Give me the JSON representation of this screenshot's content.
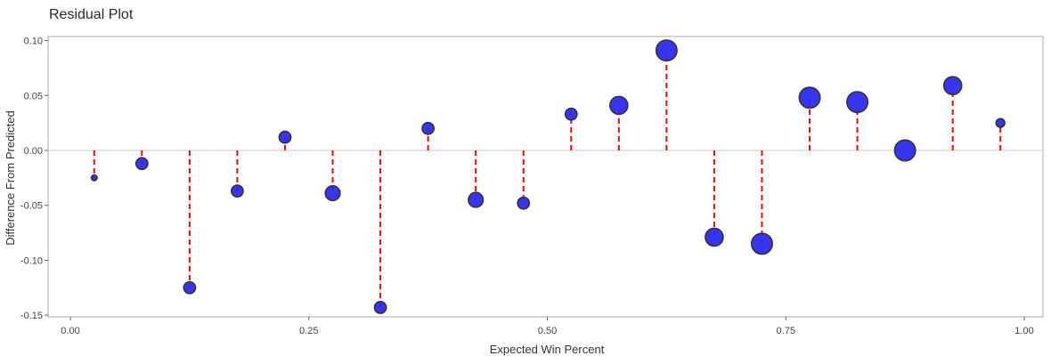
{
  "chart_data": {
    "type": "scatter",
    "title": "Residual Plot",
    "xlabel": "Expected Win Percent",
    "ylabel": "Difference From Predicted",
    "xlim": [
      -0.025,
      1.0
    ],
    "ylim": [
      -0.155,
      0.104
    ],
    "xticks": [
      0.0,
      0.25,
      0.5,
      0.75,
      1.0
    ],
    "xtick_labels": [
      "0.00",
      "0.25",
      "0.50",
      "0.75",
      "1.00"
    ],
    "yticks": [
      -0.15,
      -0.1,
      -0.05,
      0.0,
      0.05,
      0.1
    ],
    "ytick_labels": [
      "-0.15",
      "-0.10",
      "-0.05",
      "0.00",
      "0.05",
      "0.10"
    ],
    "grid": false,
    "reference_line": 0.0,
    "colors": {
      "point_fill": "#2b2bf0",
      "point_stroke": "#333333",
      "residual_line": "#ff0000",
      "zero_line": "#c8c8c8",
      "frame": "#aaaaaa"
    },
    "points": [
      {
        "x": 0.025,
        "y": -0.025,
        "size": 1
      },
      {
        "x": 0.075,
        "y": -0.012,
        "size": 3
      },
      {
        "x": 0.125,
        "y": -0.125,
        "size": 3
      },
      {
        "x": 0.175,
        "y": -0.037,
        "size": 3
      },
      {
        "x": 0.225,
        "y": 0.012,
        "size": 3
      },
      {
        "x": 0.275,
        "y": -0.039,
        "size": 4
      },
      {
        "x": 0.325,
        "y": -0.143,
        "size": 3
      },
      {
        "x": 0.375,
        "y": 0.02,
        "size": 3
      },
      {
        "x": 0.425,
        "y": -0.045,
        "size": 4
      },
      {
        "x": 0.475,
        "y": -0.048,
        "size": 3
      },
      {
        "x": 0.525,
        "y": 0.033,
        "size": 3
      },
      {
        "x": 0.575,
        "y": 0.041,
        "size": 5
      },
      {
        "x": 0.625,
        "y": 0.091,
        "size": 6
      },
      {
        "x": 0.675,
        "y": -0.079,
        "size": 5
      },
      {
        "x": 0.725,
        "y": -0.085,
        "size": 6
      },
      {
        "x": 0.775,
        "y": 0.048,
        "size": 6
      },
      {
        "x": 0.825,
        "y": 0.044,
        "size": 6
      },
      {
        "x": 0.875,
        "y": 0.0,
        "size": 6
      },
      {
        "x": 0.925,
        "y": 0.059,
        "size": 5
      },
      {
        "x": 0.975,
        "y": 0.025,
        "size": 2
      }
    ]
  }
}
